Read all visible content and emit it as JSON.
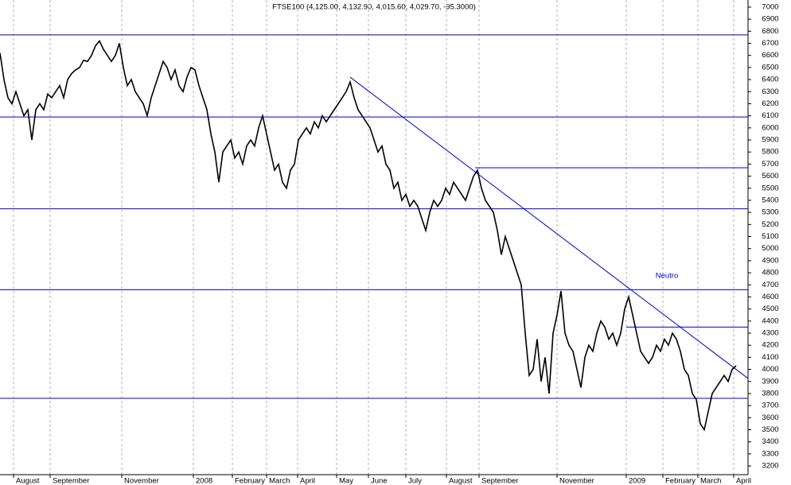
{
  "chart_data": {
    "type": "line",
    "title": "FTSE100 (4,125.00, 4,132.90, 4,015.60, 4,029.70, -95.3000)",
    "color": "#000000",
    "x": [
      0,
      1,
      2,
      3,
      4,
      5,
      6,
      7,
      8,
      9,
      10,
      11,
      12,
      13,
      14,
      15,
      16,
      17,
      18,
      19,
      20,
      21,
      22,
      23,
      24,
      25,
      26,
      27,
      28,
      29,
      30,
      31,
      32,
      33,
      34,
      35,
      36,
      37,
      38,
      39,
      40,
      41,
      42,
      43,
      44,
      45,
      46,
      47,
      48,
      49,
      50,
      51,
      52,
      53,
      54,
      55,
      56,
      57,
      58,
      59,
      60,
      61,
      62,
      63,
      64,
      65,
      66,
      67,
      68,
      69,
      70,
      71,
      72,
      73,
      74,
      75,
      76,
      77,
      78,
      79,
      80,
      81,
      82,
      83,
      84,
      85,
      86,
      87,
      88,
      89,
      90,
      91,
      92,
      93,
      94,
      95,
      96,
      97,
      98,
      99,
      100,
      101,
      102,
      103,
      104,
      105,
      106,
      107,
      108,
      109,
      110,
      111,
      112,
      113,
      114,
      115,
      116,
      117,
      118,
      119,
      120,
      121,
      122,
      123,
      124,
      125,
      126,
      127,
      128,
      129,
      130,
      131,
      132,
      133,
      134,
      135,
      136,
      137,
      138,
      139,
      140,
      141,
      142,
      143,
      144,
      145,
      146,
      147,
      148,
      149,
      150,
      151,
      152,
      153,
      154,
      155,
      156,
      157,
      158,
      159,
      160,
      161,
      162,
      163,
      164,
      165,
      166,
      167,
      168,
      169,
      170,
      171,
      172,
      173,
      174,
      175,
      176,
      177,
      178,
      179,
      180,
      181,
      182,
      183,
      184,
      185
    ],
    "values": [
      6620,
      6400,
      6250,
      6200,
      6300,
      6200,
      6100,
      6150,
      5900,
      6150,
      6200,
      6150,
      6280,
      6250,
      6300,
      6350,
      6250,
      6400,
      6450,
      6480,
      6500,
      6560,
      6550,
      6600,
      6680,
      6720,
      6650,
      6600,
      6550,
      6600,
      6700,
      6500,
      6350,
      6400,
      6300,
      6250,
      6200,
      6100,
      6250,
      6350,
      6450,
      6550,
      6500,
      6400,
      6480,
      6350,
      6300,
      6420,
      6500,
      6480,
      6350,
      6250,
      6150,
      5950,
      5800,
      5550,
      5800,
      5850,
      5900,
      5750,
      5800,
      5700,
      5850,
      5900,
      5850,
      6000,
      6100,
      5950,
      5800,
      5650,
      5700,
      5550,
      5500,
      5650,
      5700,
      5900,
      5950,
      6000,
      5950,
      6050,
      6000,
      6100,
      6050,
      6100,
      6150,
      6200,
      6250,
      6300,
      6380,
      6250,
      6150,
      6100,
      6050,
      6000,
      5900,
      5800,
      5850,
      5700,
      5650,
      5500,
      5550,
      5400,
      5450,
      5350,
      5400,
      5350,
      5250,
      5150,
      5300,
      5400,
      5350,
      5400,
      5500,
      5450,
      5550,
      5500,
      5450,
      5400,
      5500,
      5600,
      5650,
      5500,
      5400,
      5350,
      5300,
      5150,
      4950,
      5100,
      5000,
      4900,
      4800,
      4700,
      4300,
      3950,
      4000,
      4250,
      3900,
      4100,
      3800,
      4300,
      4450,
      4650,
      4300,
      4200,
      4150,
      4000,
      3850,
      4100,
      4200,
      4150,
      4300,
      4400,
      4350,
      4250,
      4300,
      4200,
      4300,
      4500,
      4600,
      4450,
      4300,
      4150,
      4100,
      4050,
      4100,
      4200,
      4150,
      4250,
      4200,
      4300,
      4250,
      4150,
      4000,
      3950,
      3800,
      3750,
      3550,
      3500,
      3650,
      3800,
      3850,
      3900,
      3950,
      3900,
      4000,
      4030
    ],
    "xlim": [
      0,
      188
    ],
    "ylim": [
      3128,
      7059
    ],
    "xticks": [
      {
        "value": 3.4,
        "label": "August"
      },
      {
        "value": 12.6,
        "label": "September"
      },
      {
        "value": 30.6,
        "label": "November"
      },
      {
        "value": 48.6,
        "label": "2008"
      },
      {
        "value": 58.4,
        "label": "February"
      },
      {
        "value": 67,
        "label": "March"
      },
      {
        "value": 74.8,
        "label": "April"
      },
      {
        "value": 84.6,
        "label": "May"
      },
      {
        "value": 92.6,
        "label": "June"
      },
      {
        "value": 102,
        "label": "July"
      },
      {
        "value": 112.2,
        "label": "August"
      },
      {
        "value": 120.4,
        "label": "September"
      },
      {
        "value": 140,
        "label": "November"
      },
      {
        "value": 157.4,
        "label": "2009"
      },
      {
        "value": 166.6,
        "label": "February"
      },
      {
        "value": 175.4,
        "label": "March"
      },
      {
        "value": 184.4,
        "label": "April"
      }
    ],
    "yticks": [
      3200,
      3300,
      3400,
      3500,
      3600,
      3700,
      3800,
      3900,
      4000,
      4100,
      4200,
      4300,
      4400,
      4500,
      4600,
      4700,
      4800,
      4900,
      5000,
      5100,
      5200,
      5300,
      5400,
      5500,
      5600,
      5700,
      5800,
      5900,
      6000,
      6100,
      6200,
      6300,
      6400,
      6500,
      6600,
      6700,
      6800,
      6900,
      7000
    ],
    "grid": true,
    "line_color": "#0000cc",
    "hlines": [
      {
        "value": 6770,
        "x_start": 0
      },
      {
        "value": 6090,
        "x_start": 0
      },
      {
        "value": 5330,
        "x_start": 0
      },
      {
        "value": 4660,
        "x_start": 0
      },
      {
        "value": 3760,
        "x_start": 0
      },
      {
        "value": 5670,
        "x_start": 119.4
      },
      {
        "value": 4350,
        "x_start": 157.4
      }
    ],
    "trendline": {
      "x": [
        88,
        188
      ],
      "y": [
        6420,
        3925
      ]
    },
    "annotation": {
      "text": "Neutro",
      "x": 167.6,
      "y": 4773
    }
  }
}
